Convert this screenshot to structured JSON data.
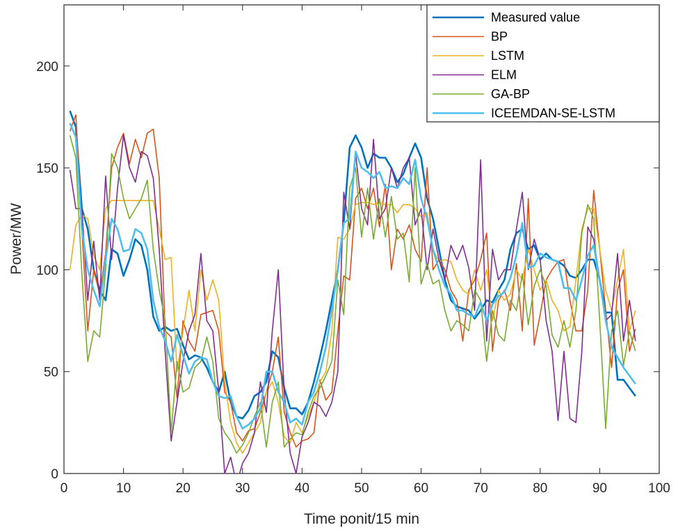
{
  "chart_data": {
    "type": "line",
    "title": "",
    "xlabel": "Time ponit/15 min",
    "ylabel": "Power/MW",
    "xlim": [
      0,
      100
    ],
    "ylim": [
      0,
      230
    ],
    "xticks": [
      0,
      10,
      20,
      30,
      40,
      50,
      60,
      70,
      80,
      90,
      100
    ],
    "yticks": [
      0,
      50,
      100,
      150,
      200
    ],
    "grid": false,
    "legend_position": "top-right",
    "x_start": 1,
    "series": [
      {
        "name": "Measured value",
        "color": "#0072BD",
        "width": 2.6,
        "values": [
          178,
          170,
          130,
          120,
          100,
          90,
          85,
          110,
          108,
          97,
          105,
          115,
          112,
          100,
          77,
          70,
          72,
          70,
          71,
          63,
          56,
          58,
          57,
          52,
          45,
          40,
          50,
          35,
          28,
          27,
          31,
          38,
          40,
          45,
          60,
          57,
          42,
          32,
          32,
          29,
          35,
          45,
          57,
          70,
          85,
          100,
          123,
          160,
          166,
          160,
          150,
          157,
          155,
          155,
          150,
          143,
          147,
          155,
          162,
          155,
          135,
          125,
          110,
          95,
          85,
          82,
          81,
          80,
          76,
          80,
          85,
          84,
          90,
          95,
          110,
          118,
          120,
          110,
          112,
          105,
          108,
          105,
          104,
          102,
          97,
          96,
          100,
          105,
          105,
          95,
          79,
          79,
          46,
          46,
          42,
          38
        ]
      },
      {
        "name": "BP",
        "color": "#D95319",
        "width": 1.6,
        "values": [
          168,
          176,
          120,
          70,
          100,
          88,
          108,
          150,
          160,
          167,
          152,
          164,
          155,
          167,
          169,
          145,
          70,
          67,
          37,
          75,
          65,
          60,
          78,
          79,
          80,
          70,
          40,
          35,
          20,
          16,
          21,
          22,
          30,
          40,
          50,
          67,
          30,
          20,
          13,
          16,
          17,
          20,
          46,
          36,
          40,
          70,
          97,
          95,
          135,
          140,
          130,
          140,
          121,
          142,
          100,
          120,
          115,
          122,
          110,
          104,
          150,
          100,
          105,
          100,
          90,
          85,
          65,
          90,
          95,
          105,
          118,
          60,
          85,
          90,
          80,
          103,
          70,
          135,
          63,
          78,
          95,
          100,
          104,
          105,
          85,
          70,
          70,
          90,
          139,
          110,
          80,
          52,
          90,
          100,
          60,
          71
        ]
      },
      {
        "name": "LSTM",
        "color": "#EDB120",
        "width": 1.6,
        "values": [
          100,
          122,
          127,
          125,
          107,
          100,
          130,
          134,
          134,
          134,
          134,
          134,
          134,
          134,
          134,
          120,
          105,
          106,
          50,
          70,
          90,
          70,
          100,
          85,
          95,
          85,
          45,
          25,
          15,
          10,
          15,
          20,
          25,
          40,
          45,
          35,
          18,
          15,
          25,
          20,
          28,
          35,
          45,
          50,
          70,
          116,
          115,
          120,
          132,
          133,
          133,
          132,
          133,
          132,
          132,
          128,
          132,
          132,
          130,
          126,
          128,
          110,
          104,
          105,
          104,
          95,
          90,
          88,
          100,
          90,
          100,
          75,
          90,
          85,
          88,
          100,
          95,
          110,
          100,
          90,
          95,
          85,
          80,
          70,
          72,
          95,
          120,
          130,
          130,
          110,
          90,
          80,
          95,
          110,
          70,
          80
        ]
      },
      {
        "name": "ELM",
        "color": "#7E2F8E",
        "width": 1.6,
        "values": [
          149,
          130,
          130,
          85,
          114,
          85,
          146,
          105,
          140,
          166,
          150,
          143,
          158,
          156,
          145,
          110,
          60,
          16,
          35,
          55,
          70,
          78,
          108,
          75,
          70,
          40,
          0,
          8,
          -5,
          5,
          10,
          20,
          45,
          30,
          70,
          100,
          40,
          10,
          0,
          18,
          25,
          35,
          33,
          28,
          35,
          50,
          138,
          120,
          157,
          130,
          122,
          164,
          125,
          130,
          150,
          140,
          150,
          155,
          122,
          130,
          100,
          120,
          105,
          95,
          112,
          105,
          112,
          101,
          80,
          154,
          65,
          110,
          95,
          100,
          100,
          120,
          138,
          100,
          115,
          105,
          75,
          60,
          26,
          60,
          27,
          25,
          60,
          121,
          115,
          95,
          75,
          78,
          108,
          65,
          85,
          65
        ]
      },
      {
        "name": "GA-BP",
        "color": "#77AC30",
        "width": 1.6,
        "values": [
          166,
          155,
          98,
          55,
          70,
          67,
          100,
          157,
          150,
          135,
          125,
          130,
          135,
          144,
          110,
          90,
          75,
          20,
          55,
          40,
          42,
          52,
          55,
          67,
          55,
          27,
          20,
          16,
          10,
          14,
          20,
          28,
          35,
          13,
          35,
          45,
          13,
          17,
          20,
          19,
          30,
          38,
          42,
          48,
          55,
          95,
          78,
          140,
          150,
          116,
          140,
          115,
          135,
          116,
          136,
          115,
          118,
          94,
          150,
          93,
          103,
          93,
          95,
          80,
          70,
          75,
          73,
          70,
          90,
          85,
          55,
          80,
          68,
          65,
          85,
          80,
          98,
          73,
          92,
          100,
          92,
          68,
          62,
          75,
          62,
          80,
          118,
          132,
          125,
          75,
          22,
          70,
          80,
          53,
          70,
          60
        ]
      },
      {
        "name": "ICEEMDAN-SE-LSTM",
        "color": "#4DBEEE",
        "width": 2.6,
        "values": [
          172,
          165,
          120,
          100,
          90,
          82,
          105,
          125,
          120,
          109,
          110,
          120,
          118,
          110,
          85,
          72,
          65,
          55,
          68,
          58,
          49,
          55,
          57,
          56,
          45,
          38,
          37,
          38,
          28,
          22,
          24,
          27,
          32,
          50,
          50,
          40,
          35,
          25,
          27,
          24,
          35,
          40,
          50,
          62,
          80,
          100,
          123,
          125,
          158,
          150,
          148,
          145,
          148,
          140,
          141,
          140,
          145,
          142,
          154,
          135,
          125,
          110,
          100,
          92,
          88,
          80,
          80,
          78,
          77,
          84,
          75,
          83,
          87,
          89,
          96,
          107,
          123,
          101,
          102,
          108,
          106,
          105,
          104,
          91,
          91,
          85,
          95,
          107,
          112,
          95,
          75,
          62,
          57,
          52,
          48,
          44
        ]
      }
    ]
  }
}
